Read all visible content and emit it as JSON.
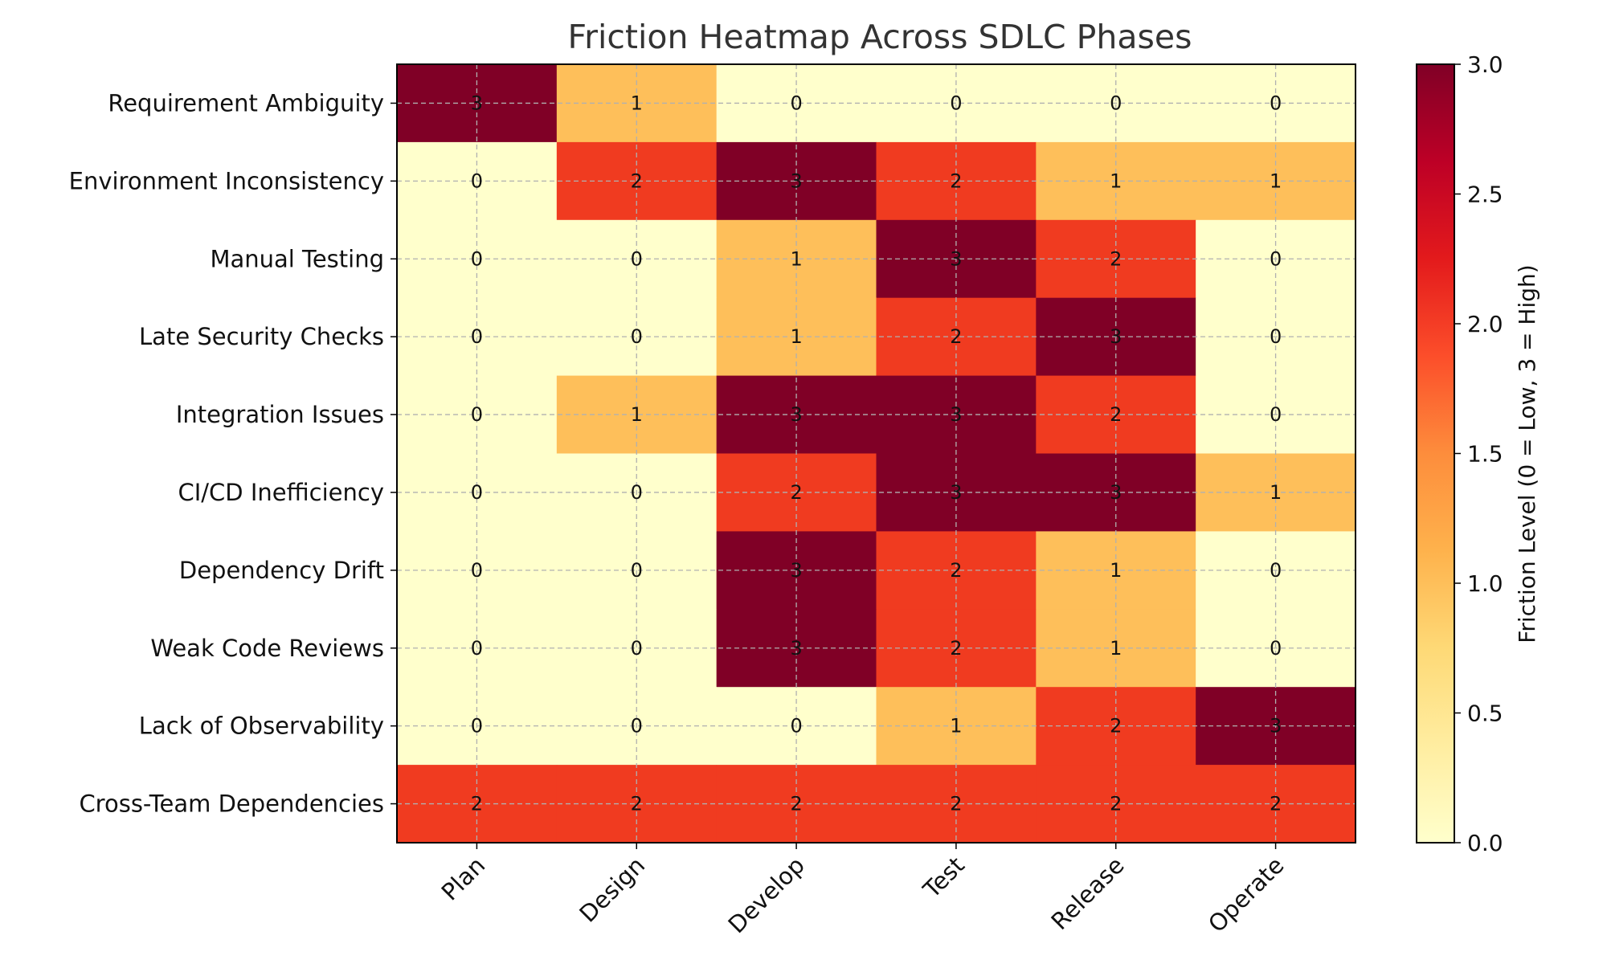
{
  "chart_data": {
    "type": "heatmap",
    "title": "Friction Heatmap Across SDLC Phases",
    "x_categories": [
      "Plan",
      "Design",
      "Develop",
      "Test",
      "Release",
      "Operate"
    ],
    "y_categories": [
      "Requirement Ambiguity",
      "Environment Inconsistency",
      "Manual Testing",
      "Late Security Checks",
      "Integration Issues",
      "CI/CD Inefficiency",
      "Dependency Drift",
      "Weak Code Reviews",
      "Lack of Observability",
      "Cross-Team Dependencies"
    ],
    "values": [
      [
        3,
        1,
        0,
        0,
        0,
        0
      ],
      [
        0,
        2,
        3,
        2,
        1,
        1
      ],
      [
        0,
        0,
        1,
        3,
        2,
        0
      ],
      [
        0,
        0,
        1,
        2,
        3,
        0
      ],
      [
        0,
        1,
        3,
        3,
        2,
        0
      ],
      [
        0,
        0,
        2,
        3,
        3,
        1
      ],
      [
        0,
        0,
        3,
        2,
        1,
        0
      ],
      [
        0,
        0,
        3,
        2,
        1,
        0
      ],
      [
        0,
        0,
        0,
        1,
        2,
        3
      ],
      [
        2,
        2,
        2,
        2,
        2,
        2
      ]
    ],
    "colormap": "YlOrRd",
    "level_colors": {
      "0": "#ffffcc",
      "1": "#febf5a",
      "2": "#f03b20",
      "3": "#800026"
    },
    "colorbar": {
      "label": "Friction Level (0 = Low, 3 = High)",
      "range": [
        0,
        3
      ],
      "ticks": [
        "0.0",
        "0.5",
        "1.0",
        "1.5",
        "2.0",
        "2.5",
        "3.0"
      ]
    },
    "grid": true,
    "xtick_rotation_deg": 45
  }
}
